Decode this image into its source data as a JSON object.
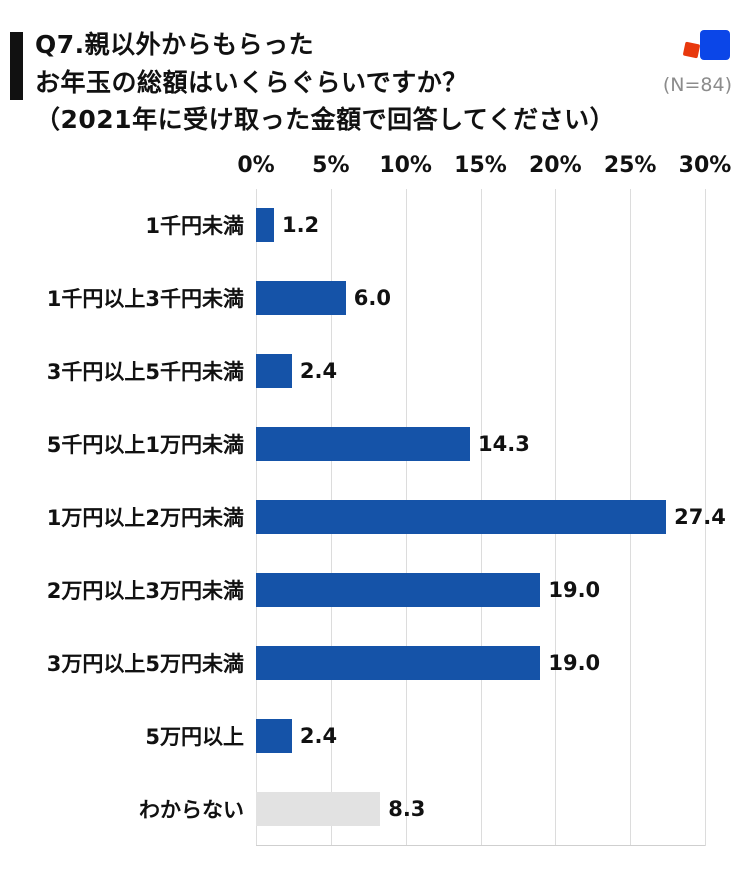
{
  "header": {
    "title_line1": "Q7.親以外からもらった",
    "title_line2": "お年玉の総額はいくらぐらいですか？",
    "title_line3": "（2021年に受け取った金額で回答してください）",
    "sample_size": "(N=84)"
  },
  "logo": {
    "red": "#e8380d",
    "blue": "#0b46e8"
  },
  "colors": {
    "bar": "#1553a8",
    "bar_unknown": "#e2e2e2",
    "grid": "#dcdcdc",
    "baseline": "#cfcfcf",
    "accent": "#111111",
    "sample_text": "#8c8c8c"
  },
  "chart_data": {
    "type": "bar",
    "orientation": "horizontal",
    "title": "Q7.親以外からもらったお年玉の総額はいくらぐらいですか？（2021年に受け取った金額で回答してください）",
    "sample_size_n": 84,
    "categories": [
      "1千円未満",
      "1千円以上3千円未満",
      "3千円以上5千円未満",
      "5千円以上1万円未満",
      "1万円以上2万円未満",
      "2万円以上3万円未満",
      "3万円以上5万円未満",
      "5万円以上",
      "わからない"
    ],
    "values": [
      1.2,
      6.0,
      2.4,
      14.3,
      27.4,
      19.0,
      19.0,
      2.4,
      8.3
    ],
    "value_labels": [
      "1.2",
      "6.0",
      "2.4",
      "14.3",
      "27.4",
      "19.0",
      "19.0",
      "2.4",
      "8.3"
    ],
    "xlabel": "",
    "ylabel": "",
    "xlim": [
      0,
      30
    ],
    "ticks": [
      "0%",
      "5%",
      "10%",
      "15%",
      "20%",
      "25%",
      "30%"
    ],
    "grid": true,
    "legend": false,
    "unknown_category_index": 8
  }
}
